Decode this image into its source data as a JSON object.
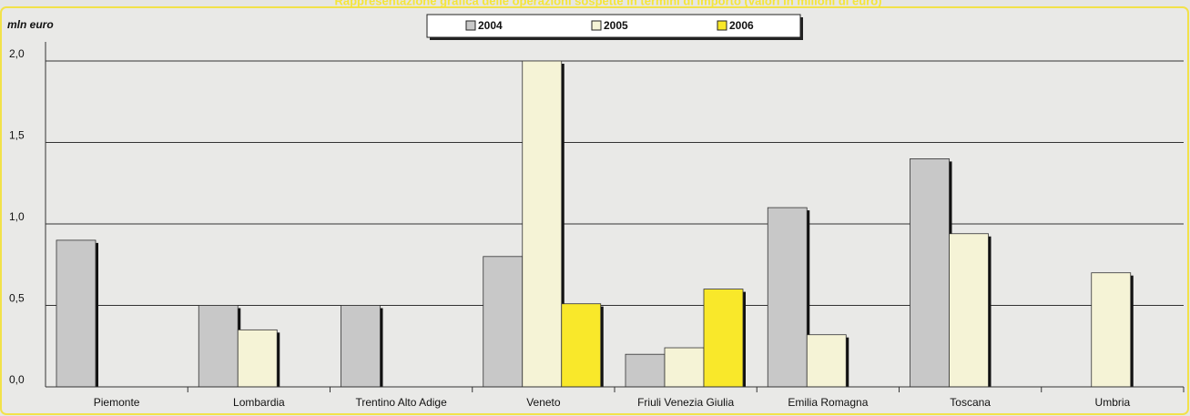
{
  "chart_data": {
    "type": "bar",
    "title": "Rappresentazione grafica delle operazioni sospette in termini di importo (valori in milioni di euro)",
    "y_label": "mln euro",
    "categories": [
      "Piemonte",
      "Lombardia",
      "Trentino Alto Adige",
      "Veneto",
      "Friuli Venezia Giulia",
      "Emilia Romagna",
      "Toscana",
      "Umbria"
    ],
    "series": [
      {
        "name": "2004",
        "color": "#c8c8c8",
        "values": [
          0.9,
          0.5,
          0.5,
          0.8,
          0.2,
          1.1,
          1.4,
          null
        ]
      },
      {
        "name": "2005",
        "color": "#f5f3d6",
        "values": [
          null,
          0.35,
          null,
          2.0,
          0.24,
          0.32,
          0.94,
          0.7
        ]
      },
      {
        "name": "2006",
        "color": "#f9e82a",
        "values": [
          null,
          null,
          null,
          0.51,
          0.6,
          null,
          null,
          null
        ]
      }
    ],
    "ylim": [
      0,
      2.0
    ],
    "yticks": [
      {
        "value": 0,
        "label": "0,0"
      },
      {
        "value": 0.5,
        "label": "0,5"
      },
      {
        "value": 1.0,
        "label": "1,0"
      },
      {
        "value": 1.5,
        "label": "1,5"
      },
      {
        "value": 2.0,
        "label": "2,0"
      }
    ],
    "grid": true
  }
}
